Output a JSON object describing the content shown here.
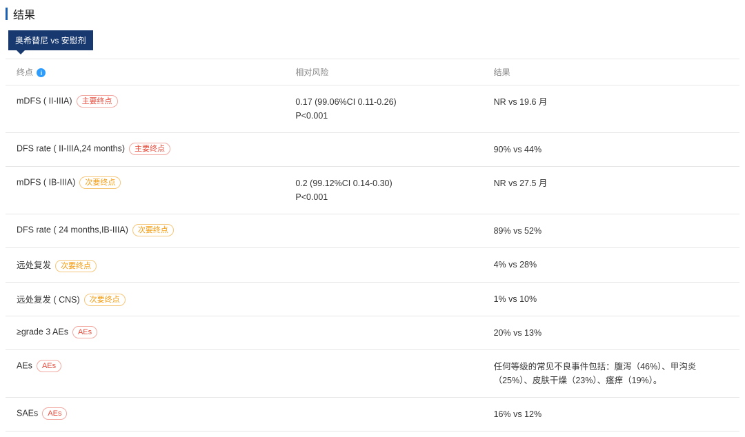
{
  "section": {
    "title": "结果"
  },
  "comparison": {
    "label": "奥希替尼 vs 安慰剂"
  },
  "headers": {
    "endpoint": "终点",
    "risk": "相对风险",
    "result": "结果"
  },
  "badges": {
    "primary": "主要终点",
    "secondary": "次要终点",
    "ae": "AEs"
  },
  "rows": [
    {
      "endpoint": "mDFS ( II-IIIA)",
      "badge": "primary",
      "risk1": "0.17 (99.06%CI 0.11-0.26)",
      "risk2": "P<0.001",
      "result": "NR vs 19.6 月"
    },
    {
      "endpoint": "DFS rate ( II-IIIA,24 months)",
      "badge": "primary",
      "risk1": "",
      "risk2": "",
      "result": "90% vs 44%"
    },
    {
      "endpoint": "mDFS ( IB-IIIA)",
      "badge": "secondary",
      "risk1": "0.2 (99.12%CI 0.14-0.30)",
      "risk2": "P<0.001",
      "result": "NR vs 27.5 月"
    },
    {
      "endpoint": "DFS rate ( 24 months,IB-IIIA)",
      "badge": "secondary",
      "risk1": "",
      "risk2": "",
      "result": "89% vs 52%"
    },
    {
      "endpoint": "远处复发",
      "badge": "secondary",
      "risk1": "",
      "risk2": "",
      "result": "4% vs 28%"
    },
    {
      "endpoint": "远处复发 ( CNS)",
      "badge": "secondary",
      "risk1": "",
      "risk2": "",
      "result": "1% vs 10%"
    },
    {
      "endpoint": "≥grade 3 AEs",
      "badge": "ae",
      "risk1": "",
      "risk2": "",
      "result": "20% vs 13%"
    },
    {
      "endpoint": "AEs",
      "badge": "ae",
      "risk1": "",
      "risk2": "",
      "result": "任何等级的常见不良事件包括：腹泻（46%）、甲沟炎（25%）、皮肤干燥（23%）、瘙痒（19%）。"
    },
    {
      "endpoint": "SAEs",
      "badge": "ae",
      "risk1": "",
      "risk2": "",
      "result": "16% vs 12%"
    }
  ]
}
